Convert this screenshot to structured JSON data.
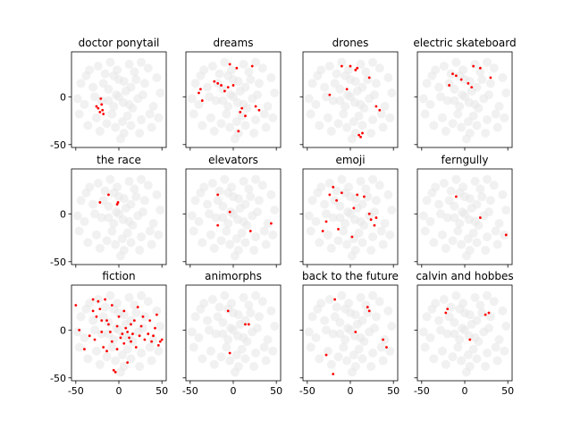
{
  "chart_data": {
    "type": "scatter",
    "grid": "off",
    "xlim": [
      -55,
      55
    ],
    "ylim": [
      -53,
      47
    ],
    "x_ticks": [
      -50,
      0,
      50
    ],
    "y_ticks": [
      -50,
      0
    ],
    "highlight_color": "#ff0000",
    "background_color": "#e6e6e6",
    "background_points": [
      [
        -3,
        2
      ],
      [
        5,
        -6
      ],
      [
        -12,
        8
      ],
      [
        14,
        10
      ],
      [
        -20,
        -4
      ],
      [
        22,
        -2
      ],
      [
        0,
        18
      ],
      [
        -8,
        -18
      ],
      [
        10,
        -20
      ],
      [
        -30,
        10
      ],
      [
        30,
        14
      ],
      [
        -16,
        24
      ],
      [
        18,
        26
      ],
      [
        -26,
        -22
      ],
      [
        26,
        -24
      ],
      [
        -4,
        -32
      ],
      [
        6,
        -38
      ],
      [
        -40,
        -8
      ],
      [
        40,
        -10
      ],
      [
        -34,
        28
      ],
      [
        34,
        30
      ],
      [
        -10,
        36
      ],
      [
        12,
        34
      ],
      [
        -44,
        14
      ],
      [
        44,
        20
      ],
      [
        -22,
        -36
      ],
      [
        24,
        -38
      ],
      [
        2,
        -44
      ],
      [
        -36,
        -30
      ],
      [
        38,
        -32
      ],
      [
        -48,
        -2
      ],
      [
        48,
        4
      ],
      [
        8,
        6
      ],
      [
        -6,
        -10
      ],
      [
        16,
        -12
      ],
      [
        -18,
        14
      ],
      [
        20,
        18
      ],
      [
        -2,
        28
      ],
      [
        4,
        -26
      ],
      [
        -28,
        0
      ],
      [
        28,
        2
      ],
      [
        -14,
        -28
      ],
      [
        14,
        -30
      ],
      [
        -38,
        22
      ],
      [
        36,
        -18
      ],
      [
        0,
        0
      ],
      [
        -24,
        32
      ],
      [
        26,
        36
      ],
      [
        -46,
        -18
      ],
      [
        46,
        -22
      ],
      [
        -12,
        -4
      ],
      [
        12,
        -8
      ],
      [
        6,
        16
      ],
      [
        -6,
        22
      ]
    ],
    "panels": [
      {
        "title": "doctor ponytail",
        "points": [
          [
            -24,
            -12
          ],
          [
            -22,
            -16
          ],
          [
            -20,
            -8
          ],
          [
            -18,
            -18
          ],
          [
            -26,
            -10
          ],
          [
            -21,
            -2
          ],
          [
            -19,
            -14
          ]
        ]
      },
      {
        "title": "dreams",
        "points": [
          [
            -40,
            4
          ],
          [
            -38,
            8
          ],
          [
            -36,
            -4
          ],
          [
            -22,
            16
          ],
          [
            -18,
            14
          ],
          [
            -14,
            12
          ],
          [
            -10,
            6
          ],
          [
            -4,
            34
          ],
          [
            0,
            12
          ],
          [
            4,
            30
          ],
          [
            6,
            -36
          ],
          [
            8,
            -16
          ],
          [
            10,
            -12
          ],
          [
            14,
            -20
          ],
          [
            22,
            32
          ],
          [
            26,
            -10
          ],
          [
            30,
            -14
          ],
          [
            -6,
            10
          ]
        ]
      },
      {
        "title": "drones",
        "points": [
          [
            -24,
            2
          ],
          [
            -10,
            32
          ],
          [
            -4,
            8
          ],
          [
            0,
            32
          ],
          [
            6,
            28
          ],
          [
            8,
            30
          ],
          [
            10,
            -40
          ],
          [
            12,
            -42
          ],
          [
            14,
            -38
          ],
          [
            22,
            20
          ],
          [
            30,
            -10
          ],
          [
            34,
            -14
          ]
        ]
      },
      {
        "title": "electric skateboard",
        "points": [
          [
            -18,
            12
          ],
          [
            -14,
            24
          ],
          [
            -10,
            22
          ],
          [
            -4,
            18
          ],
          [
            4,
            14
          ],
          [
            8,
            10
          ],
          [
            10,
            32
          ],
          [
            18,
            30
          ],
          [
            30,
            20
          ]
        ]
      },
      {
        "title": "the race",
        "points": [
          [
            -22,
            12
          ],
          [
            -12,
            20
          ],
          [
            -2,
            10
          ],
          [
            -1,
            12
          ]
        ]
      },
      {
        "title": "elevators",
        "points": [
          [
            -18,
            20
          ],
          [
            -18,
            -12
          ],
          [
            -4,
            2
          ],
          [
            20,
            -18
          ],
          [
            44,
            -10
          ]
        ]
      },
      {
        "title": "emoji",
        "points": [
          [
            -32,
            -18
          ],
          [
            -28,
            -8
          ],
          [
            -24,
            20
          ],
          [
            -20,
            28
          ],
          [
            -16,
            14
          ],
          [
            -14,
            -16
          ],
          [
            -10,
            22
          ],
          [
            2,
            -24
          ],
          [
            4,
            6
          ],
          [
            8,
            20
          ],
          [
            16,
            18
          ],
          [
            22,
            0
          ],
          [
            24,
            -6
          ],
          [
            28,
            -12
          ],
          [
            30,
            -4
          ]
        ]
      },
      {
        "title": "ferngully",
        "points": [
          [
            -10,
            18
          ],
          [
            18,
            -4
          ],
          [
            48,
            -22
          ]
        ]
      },
      {
        "title": "fiction",
        "points": [
          [
            -50,
            26
          ],
          [
            -46,
            0
          ],
          [
            -34,
            -6
          ],
          [
            -30,
            20
          ],
          [
            -28,
            -10
          ],
          [
            -26,
            14
          ],
          [
            -24,
            30
          ],
          [
            -22,
            22
          ],
          [
            -20,
            -2
          ],
          [
            -18,
            -18
          ],
          [
            -16,
            32
          ],
          [
            -14,
            10
          ],
          [
            -14,
            -22
          ],
          [
            -12,
            6
          ],
          [
            -10,
            -2
          ],
          [
            -8,
            26
          ],
          [
            -8,
            -12
          ],
          [
            -6,
            -42
          ],
          [
            -4,
            -44
          ],
          [
            -2,
            4
          ],
          [
            -2,
            -20
          ],
          [
            0,
            14
          ],
          [
            2,
            -8
          ],
          [
            4,
            -4
          ],
          [
            6,
            -14
          ],
          [
            6,
            20
          ],
          [
            8,
            2
          ],
          [
            10,
            -2
          ],
          [
            12,
            -8
          ],
          [
            14,
            -12
          ],
          [
            14,
            6
          ],
          [
            16,
            -4
          ],
          [
            18,
            10
          ],
          [
            20,
            -18
          ],
          [
            22,
            24
          ],
          [
            24,
            -6
          ],
          [
            26,
            4
          ],
          [
            28,
            14
          ],
          [
            30,
            -10
          ],
          [
            34,
            -4
          ],
          [
            36,
            10
          ],
          [
            38,
            -12
          ],
          [
            40,
            -6
          ],
          [
            42,
            2
          ],
          [
            44,
            16
          ],
          [
            46,
            -16
          ],
          [
            48,
            -12
          ],
          [
            50,
            -10
          ],
          [
            -30,
            32
          ],
          [
            -20,
            10
          ],
          [
            -40,
            -20
          ],
          [
            10,
            -34
          ]
        ]
      },
      {
        "title": "animorphs",
        "points": [
          [
            -6,
            20
          ],
          [
            -4,
            -24
          ],
          [
            14,
            6
          ],
          [
            18,
            6
          ]
        ]
      },
      {
        "title": "back to the future",
        "points": [
          [
            -28,
            -26
          ],
          [
            -20,
            -46
          ],
          [
            -18,
            32
          ],
          [
            6,
            -2
          ],
          [
            20,
            24
          ],
          [
            22,
            20
          ],
          [
            38,
            -10
          ],
          [
            42,
            -18
          ]
        ]
      },
      {
        "title": "calvin and hobbes",
        "points": [
          [
            -22,
            18
          ],
          [
            -20,
            22
          ],
          [
            6,
            -10
          ],
          [
            24,
            16
          ],
          [
            28,
            18
          ]
        ]
      }
    ]
  }
}
